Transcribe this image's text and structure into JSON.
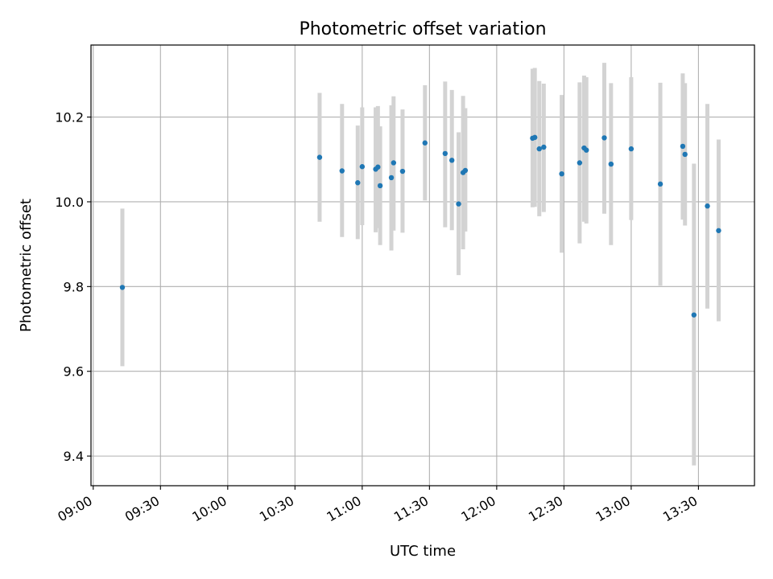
{
  "chart_data": {
    "type": "scatter",
    "title": "Photometric offset variation",
    "xlabel": "UTC time",
    "ylabel": "Photometric offset",
    "x_tick_labels": [
      "09:00",
      "09:30",
      "10:00",
      "10:30",
      "11:00",
      "11:30",
      "12:00",
      "12:30",
      "13:00",
      "13:30"
    ],
    "y_tick_labels": [
      "9.4",
      "9.6",
      "9.8",
      "10.0",
      "10.2"
    ],
    "xlim": [
      "08:59",
      "13:55"
    ],
    "ylim": [
      9.33,
      10.37
    ],
    "grid": true,
    "legend": "none",
    "colors": {
      "point": "#1f77b4",
      "errorbar": "#d3d3d3",
      "grid": "#b0b0b0"
    },
    "series": [
      {
        "points": [
          {
            "x": "09:13",
            "y": 9.798,
            "lo": 9.612,
            "hi": 9.984
          },
          {
            "x": "10:41",
            "y": 10.105,
            "lo": 9.953,
            "hi": 10.257
          },
          {
            "x": "10:51",
            "y": 10.073,
            "lo": 9.917,
            "hi": 10.231
          },
          {
            "x": "10:58",
            "y": 10.045,
            "lo": 9.912,
            "hi": 10.18
          },
          {
            "x": "11:00",
            "y": 10.083,
            "lo": 9.945,
            "hi": 10.223
          },
          {
            "x": "11:06",
            "y": 10.077,
            "lo": 9.928,
            "hi": 10.223
          },
          {
            "x": "11:07",
            "y": 10.082,
            "lo": 9.938,
            "hi": 10.226
          },
          {
            "x": "11:08",
            "y": 10.038,
            "lo": 9.898,
            "hi": 10.178
          },
          {
            "x": "11:13",
            "y": 10.057,
            "lo": 9.885,
            "hi": 10.228
          },
          {
            "x": "11:14",
            "y": 10.092,
            "lo": 9.932,
            "hi": 10.249
          },
          {
            "x": "11:18",
            "y": 10.072,
            "lo": 9.927,
            "hi": 10.218
          },
          {
            "x": "11:28",
            "y": 10.139,
            "lo": 10.003,
            "hi": 10.275
          },
          {
            "x": "11:37",
            "y": 10.114,
            "lo": 9.94,
            "hi": 10.284
          },
          {
            "x": "11:40",
            "y": 10.098,
            "lo": 9.933,
            "hi": 10.264
          },
          {
            "x": "11:43",
            "y": 9.995,
            "lo": 9.827,
            "hi": 10.164
          },
          {
            "x": "11:45",
            "y": 10.069,
            "lo": 9.888,
            "hi": 10.25
          },
          {
            "x": "11:46",
            "y": 10.074,
            "lo": 9.93,
            "hi": 10.221
          },
          {
            "x": "12:16",
            "y": 10.15,
            "lo": 9.987,
            "hi": 10.314
          },
          {
            "x": "12:17",
            "y": 10.152,
            "lo": 9.988,
            "hi": 10.316
          },
          {
            "x": "12:19",
            "y": 10.125,
            "lo": 9.966,
            "hi": 10.285
          },
          {
            "x": "12:21",
            "y": 10.129,
            "lo": 9.976,
            "hi": 10.279
          },
          {
            "x": "12:29",
            "y": 10.066,
            "lo": 9.88,
            "hi": 10.252
          },
          {
            "x": "12:37",
            "y": 10.092,
            "lo": 9.902,
            "hi": 10.282
          },
          {
            "x": "12:39",
            "y": 10.127,
            "lo": 9.953,
            "hi": 10.298
          },
          {
            "x": "12:40",
            "y": 10.122,
            "lo": 9.949,
            "hi": 10.294
          },
          {
            "x": "12:48",
            "y": 10.151,
            "lo": 9.972,
            "hi": 10.328
          },
          {
            "x": "12:51",
            "y": 10.089,
            "lo": 9.898,
            "hi": 10.28
          },
          {
            "x": "13:00",
            "y": 10.125,
            "lo": 9.957,
            "hi": 10.294
          },
          {
            "x": "13:13",
            "y": 10.042,
            "lo": 9.802,
            "hi": 10.281
          },
          {
            "x": "13:23",
            "y": 10.131,
            "lo": 9.958,
            "hi": 10.303
          },
          {
            "x": "13:24",
            "y": 10.112,
            "lo": 9.944,
            "hi": 10.28
          },
          {
            "x": "13:28",
            "y": 9.733,
            "lo": 9.378,
            "hi": 10.09
          },
          {
            "x": "13:34",
            "y": 9.99,
            "lo": 9.748,
            "hi": 10.231
          },
          {
            "x": "13:39",
            "y": 9.932,
            "lo": 9.718,
            "hi": 10.147
          }
        ]
      }
    ]
  }
}
